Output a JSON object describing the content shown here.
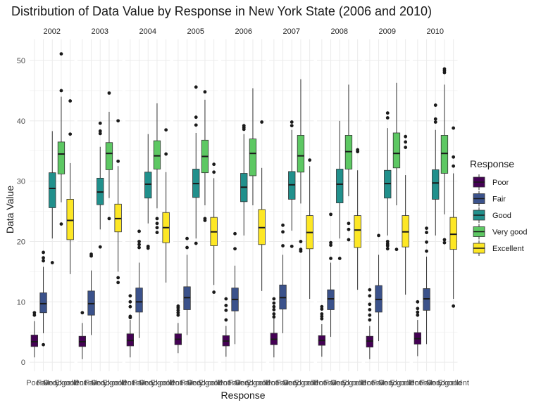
{
  "chart_data": {
    "type": "box",
    "title": "Distribution of Data Value by Response in New York State (2006 and 2010)",
    "xlabel": "Response",
    "ylabel": "Data Value",
    "ylim": [
      -1.5,
      53.5
    ],
    "yticks": [
      0,
      10,
      20,
      30,
      40,
      50
    ],
    "facets": [
      "2002",
      "2003",
      "2004",
      "2005",
      "2006",
      "2007",
      "2008",
      "2009",
      "2010"
    ],
    "categories": [
      "Poor",
      "Fair",
      "Good",
      "Very good",
      "Excellent"
    ],
    "legend": {
      "title": "Response",
      "placement": "right"
    },
    "colors": {
      "Poor": "#440154",
      "Fair": "#3B528B",
      "Good": "#21908C",
      "Very good": "#5DC863",
      "Excellent": "#FDE725"
    },
    "grid": true,
    "panels": [
      {
        "year": "2002",
        "boxes": [
          {
            "min": 0.8,
            "q1": 2.6,
            "median": 3.4,
            "q3": 4.5,
            "max": 6.8,
            "outliers": [
              7.8,
              8.2
            ]
          },
          {
            "min": 4.8,
            "q1": 8.2,
            "median": 9.7,
            "q3": 11.5,
            "max": 15.8,
            "outliers": [
              2.9,
              16.8,
              17.3,
              18.2
            ]
          },
          {
            "min": 20.5,
            "q1": 25.6,
            "median": 28.8,
            "q3": 31.4,
            "max": 38.3,
            "outliers": [
              16.5
            ]
          },
          {
            "min": 26.5,
            "q1": 31.2,
            "median": 34.5,
            "q3": 36.5,
            "max": 44.0,
            "outliers": [
              22.9,
              45.0,
              51.1
            ]
          },
          {
            "min": 14.6,
            "q1": 20.3,
            "median": 23.5,
            "q3": 27.0,
            "max": 33.0,
            "outliers": [
              37.8,
              43.3
            ]
          }
        ]
      },
      {
        "year": "2003",
        "boxes": [
          {
            "min": 0.5,
            "q1": 2.6,
            "median": 3.4,
            "q3": 4.3,
            "max": 6.5,
            "outliers": [
              8.2
            ]
          },
          {
            "min": 4.5,
            "q1": 7.8,
            "median": 9.7,
            "q3": 11.8,
            "max": 15.2,
            "outliers": [
              17.6,
              17.9
            ]
          },
          {
            "min": 22.0,
            "q1": 26.1,
            "median": 28.2,
            "q3": 30.5,
            "max": 35.7,
            "outliers": [
              19.1,
              37.9,
              38.3,
              39.6
            ]
          },
          {
            "min": 27.2,
            "q1": 31.9,
            "median": 34.6,
            "q3": 36.4,
            "max": 41.5,
            "outliers": [
              23.8,
              44.6
            ]
          },
          {
            "min": 15.0,
            "q1": 21.6,
            "median": 23.8,
            "q3": 26.2,
            "max": 32.5,
            "outliers": [
              13.2,
              14.0,
              33.3,
              40.0
            ]
          }
        ]
      },
      {
        "year": "2004",
        "boxes": [
          {
            "min": 0.8,
            "q1": 2.7,
            "median": 3.6,
            "q3": 4.7,
            "max": 7.0,
            "outliers": [
              7.4,
              7.6,
              9.2,
              10.0,
              11.0
            ]
          },
          {
            "min": 4.0,
            "q1": 8.3,
            "median": 10.0,
            "q3": 12.3,
            "max": 16.5,
            "outliers": [
              19.0,
              19.5,
              20.0,
              21.7
            ]
          },
          {
            "min": 23.0,
            "q1": 27.2,
            "median": 29.5,
            "q3": 31.5,
            "max": 37.8,
            "outliers": [
              18.9,
              19.2
            ]
          },
          {
            "min": 25.5,
            "q1": 32.0,
            "median": 34.2,
            "q3": 36.7,
            "max": 42.9,
            "outliers": [
              21.5,
              22.3,
              23.0,
              23.8
            ]
          },
          {
            "min": 13.2,
            "q1": 19.8,
            "median": 22.3,
            "q3": 24.8,
            "max": 31.5,
            "outliers": [
              34.5,
              38.5
            ]
          }
        ]
      },
      {
        "year": "2005",
        "boxes": [
          {
            "min": 1.5,
            "q1": 2.9,
            "median": 3.8,
            "q3": 4.7,
            "max": 6.5,
            "outliers": [
              7.8,
              8.2,
              8.6,
              9.0,
              9.3
            ]
          },
          {
            "min": 4.5,
            "q1": 8.7,
            "median": 10.7,
            "q3": 12.5,
            "max": 17.8,
            "outliers": [
              19.0,
              20.5
            ]
          },
          {
            "min": 20.5,
            "q1": 27.3,
            "median": 29.6,
            "q3": 32.0,
            "max": 38.0,
            "outliers": [
              19.7,
              39.3,
              40.6,
              45.6
            ]
          },
          {
            "min": 26.0,
            "q1": 31.4,
            "median": 34.1,
            "q3": 36.8,
            "max": 43.5,
            "outliers": [
              23.5,
              23.8,
              44.8
            ]
          },
          {
            "min": 12.8,
            "q1": 19.3,
            "median": 21.6,
            "q3": 24.0,
            "max": 30.5,
            "outliers": [
              11.6,
              31.5,
              32.8
            ]
          }
        ]
      },
      {
        "year": "2006",
        "boxes": [
          {
            "min": 0.9,
            "q1": 2.7,
            "median": 3.5,
            "q3": 4.4,
            "max": 6.0,
            "outliers": [
              7.0,
              8.6,
              9.4,
              10.5
            ]
          },
          {
            "min": 3.0,
            "q1": 8.5,
            "median": 10.4,
            "q3": 12.3,
            "max": 16.0,
            "outliers": [
              18.8,
              21.3
            ]
          },
          {
            "min": 21.0,
            "q1": 26.6,
            "median": 29.0,
            "q3": 31.3,
            "max": 37.8,
            "outliers": [
              38.6,
              38.9,
              39.2
            ]
          },
          {
            "min": 26.0,
            "q1": 30.9,
            "median": 34.6,
            "q3": 37.0,
            "max": 45.4,
            "outliers": []
          },
          {
            "min": 11.8,
            "q1": 19.5,
            "median": 22.3,
            "q3": 25.3,
            "max": 32.2,
            "outliers": [
              39.8
            ]
          }
        ]
      },
      {
        "year": "2007",
        "boxes": [
          {
            "min": 0.8,
            "q1": 2.9,
            "median": 3.8,
            "q3": 4.8,
            "max": 7.2,
            "outliers": [
              7.5,
              8.0,
              8.7,
              9.2,
              9.8,
              10.5
            ]
          },
          {
            "min": 4.8,
            "q1": 8.8,
            "median": 10.7,
            "q3": 12.8,
            "max": 17.8,
            "outliers": [
              19.3,
              21.6,
              22.7
            ]
          },
          {
            "min": 21.8,
            "q1": 27.0,
            "median": 29.4,
            "q3": 31.6,
            "max": 38.5,
            "outliers": [
              19.2,
              39.2,
              39.8
            ]
          },
          {
            "min": 26.3,
            "q1": 31.5,
            "median": 34.2,
            "q3": 37.6,
            "max": 46.9,
            "outliers": [
              18.4,
              18.7,
              20.0
            ]
          },
          {
            "min": 10.5,
            "q1": 18.8,
            "median": 21.5,
            "q3": 24.3,
            "max": 32.5,
            "outliers": [
              33.5
            ]
          }
        ]
      },
      {
        "year": "2008",
        "boxes": [
          {
            "min": 0.9,
            "q1": 2.8,
            "median": 3.6,
            "q3": 4.4,
            "max": 6.3,
            "outliers": [
              7.2,
              7.6,
              8.0,
              8.8,
              9.2
            ]
          },
          {
            "min": 4.2,
            "q1": 8.7,
            "median": 10.5,
            "q3": 12.0,
            "max": 16.5,
            "outliers": [
              17.2,
              19.4,
              19.8,
              24.5
            ]
          },
          {
            "min": 20.5,
            "q1": 26.4,
            "median": 29.5,
            "q3": 32.0,
            "max": 40.0,
            "outliers": [
              17.2
            ]
          },
          {
            "min": 27.5,
            "q1": 32.0,
            "median": 34.9,
            "q3": 37.6,
            "max": 46.0,
            "outliers": [
              20.3,
              22.0,
              23.0
            ]
          },
          {
            "min": 12.0,
            "q1": 19.0,
            "median": 21.9,
            "q3": 24.3,
            "max": 31.8,
            "outliers": [
              34.9,
              35.2
            ]
          }
        ]
      },
      {
        "year": "2009",
        "boxes": [
          {
            "min": 0.5,
            "q1": 2.5,
            "median": 3.5,
            "q3": 4.3,
            "max": 6.0,
            "outliers": [
              7.0,
              7.8,
              8.7,
              9.6,
              11.0,
              12.0
            ]
          },
          {
            "min": 3.5,
            "q1": 8.3,
            "median": 10.4,
            "q3": 12.7,
            "max": 17.8,
            "outliers": [
              21.0
            ]
          },
          {
            "min": 21.0,
            "q1": 27.2,
            "median": 29.6,
            "q3": 31.8,
            "max": 38.8,
            "outliers": [
              18.8,
              19.3,
              19.6,
              20.0,
              40.5,
              41.3
            ]
          },
          {
            "min": 26.0,
            "q1": 32.2,
            "median": 34.6,
            "q3": 38.0,
            "max": 46.3,
            "outliers": [
              18.7
            ]
          },
          {
            "min": 11.2,
            "q1": 19.1,
            "median": 21.6,
            "q3": 24.3,
            "max": 31.0,
            "outliers": [
              35.6,
              36.5,
              37.4
            ]
          }
        ]
      },
      {
        "year": "2010",
        "boxes": [
          {
            "min": 1.0,
            "q1": 3.0,
            "median": 3.9,
            "q3": 4.9,
            "max": 7.0,
            "outliers": [
              7.8,
              8.3,
              8.9,
              10.0
            ]
          },
          {
            "min": 3.0,
            "q1": 8.6,
            "median": 10.5,
            "q3": 12.2,
            "max": 17.5,
            "outliers": [
              18.4,
              19.9,
              21.5,
              22.2
            ]
          },
          {
            "min": 21.0,
            "q1": 27.0,
            "median": 29.7,
            "q3": 31.9,
            "max": 38.5,
            "outliers": [
              39.8,
              40.3,
              42.6
            ]
          },
          {
            "min": 24.5,
            "q1": 31.3,
            "median": 34.6,
            "q3": 37.6,
            "max": 46.0,
            "outliers": [
              19.8,
              20.3,
              48.0,
              48.3,
              48.6
            ]
          },
          {
            "min": 10.5,
            "q1": 18.7,
            "median": 21.2,
            "q3": 24.0,
            "max": 31.3,
            "outliers": [
              9.3,
              32.5,
              34.0,
              38.8
            ]
          }
        ]
      }
    ]
  }
}
